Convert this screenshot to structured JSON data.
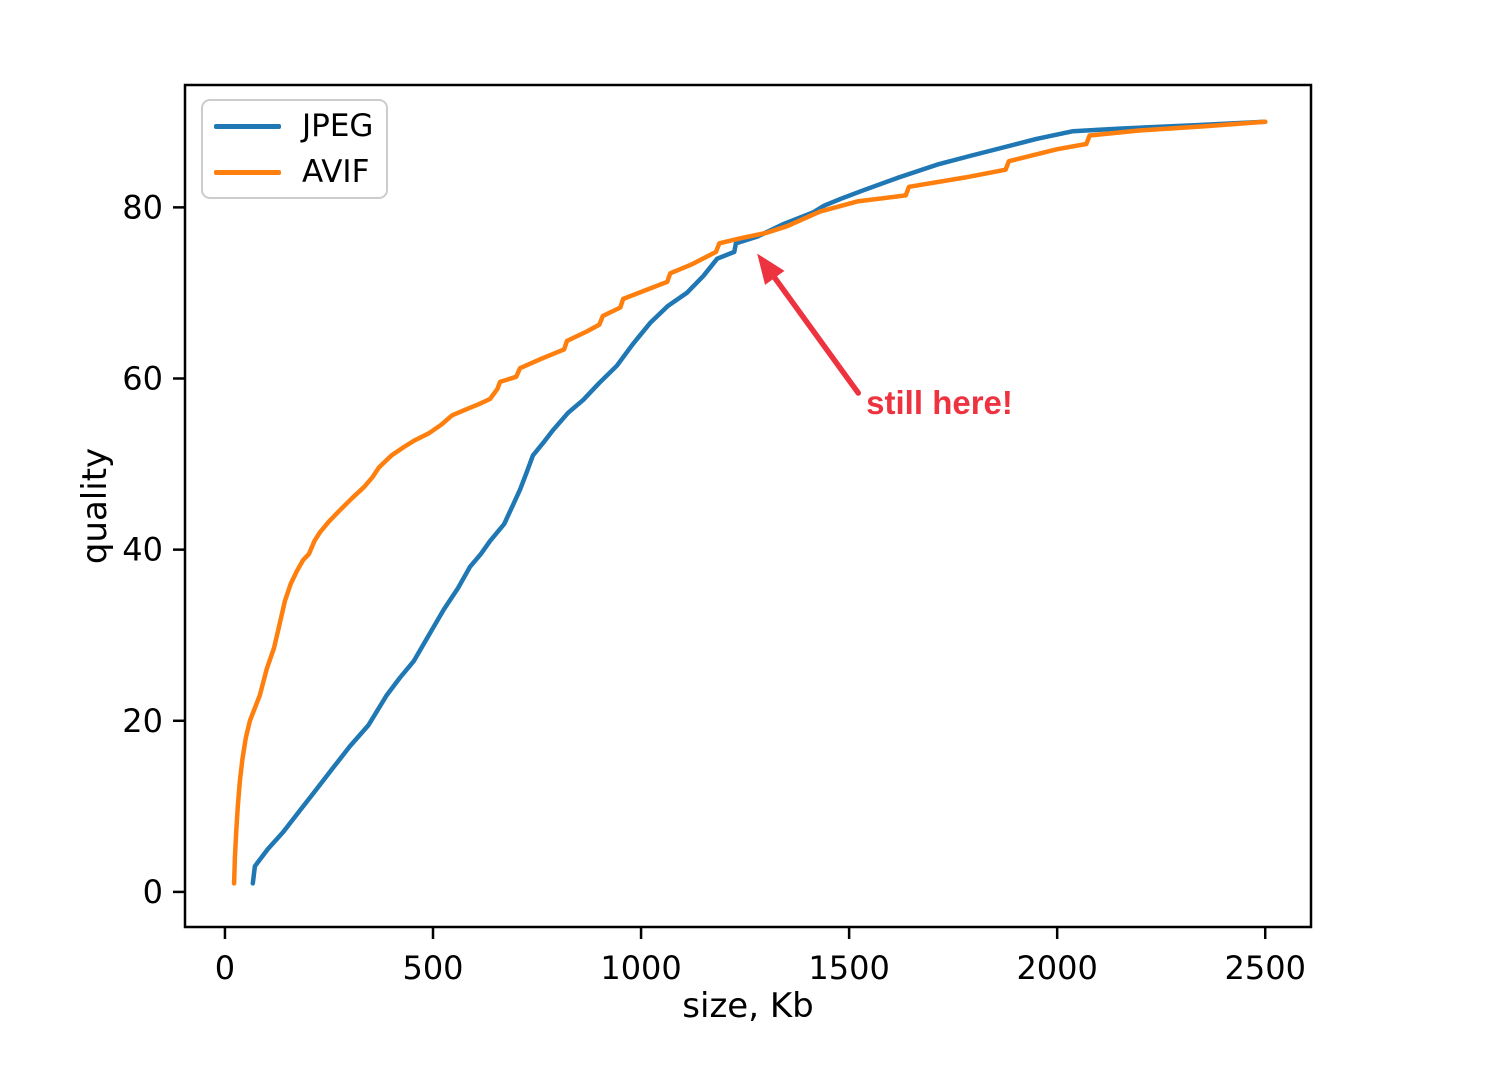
{
  "figure": {
    "background": "#ffffff"
  },
  "chart_data": {
    "type": "line",
    "title": "",
    "xlabel": "size, Kb",
    "ylabel": "quality",
    "xlim": [
      -96,
      2610
    ],
    "ylim": [
      -4.1,
      94.3
    ],
    "xticks": [
      0,
      500,
      1000,
      1500,
      2000,
      2500
    ],
    "yticks": [
      0,
      20,
      40,
      60,
      80
    ],
    "grid": false,
    "legend_position": "upper-left",
    "series": [
      {
        "name": "JPEG",
        "color": "#1f77b4",
        "points": [
          [
            67,
            1
          ],
          [
            72,
            3
          ],
          [
            103,
            5
          ],
          [
            140,
            7
          ],
          [
            180,
            9.5
          ],
          [
            220,
            12
          ],
          [
            260,
            14.5
          ],
          [
            300,
            17
          ],
          [
            345,
            19.5
          ],
          [
            389,
            23
          ],
          [
            420,
            25
          ],
          [
            454,
            27
          ],
          [
            490,
            30
          ],
          [
            526,
            33
          ],
          [
            560,
            35.5
          ],
          [
            589,
            38
          ],
          [
            615,
            39.5
          ],
          [
            637,
            41
          ],
          [
            671,
            43
          ],
          [
            690,
            45
          ],
          [
            709,
            47
          ],
          [
            725,
            49
          ],
          [
            740,
            51
          ],
          [
            765,
            52.5
          ],
          [
            789,
            54
          ],
          [
            825,
            56
          ],
          [
            861,
            57.5
          ],
          [
            900,
            59.5
          ],
          [
            942,
            61.5
          ],
          [
            980,
            64
          ],
          [
            1022,
            66.5
          ],
          [
            1065,
            68.5
          ],
          [
            1110,
            70
          ],
          [
            1150,
            72
          ],
          [
            1183,
            74
          ],
          [
            1224,
            74.8
          ],
          [
            1228,
            75.8
          ],
          [
            1280,
            76.6
          ],
          [
            1340,
            78
          ],
          [
            1413,
            79.4
          ],
          [
            1440,
            80.2
          ],
          [
            1480,
            81
          ],
          [
            1534,
            82
          ],
          [
            1620,
            83.5
          ],
          [
            1712,
            85
          ],
          [
            1790,
            86
          ],
          [
            1870,
            87
          ],
          [
            1950,
            88
          ],
          [
            2038,
            88.9
          ],
          [
            2150,
            89.2
          ],
          [
            2330,
            89.6
          ],
          [
            2500,
            90
          ]
        ]
      },
      {
        "name": "AVIF",
        "color": "#ff7f0e",
        "points": [
          [
            22,
            1
          ],
          [
            24,
            4
          ],
          [
            27,
            7
          ],
          [
            31,
            10
          ],
          [
            36,
            13
          ],
          [
            42,
            15.5
          ],
          [
            50,
            18
          ],
          [
            60,
            20
          ],
          [
            72,
            21.5
          ],
          [
            84,
            23
          ],
          [
            100,
            26
          ],
          [
            118,
            28.5
          ],
          [
            130,
            31
          ],
          [
            144,
            34
          ],
          [
            158,
            36
          ],
          [
            173,
            37.5
          ],
          [
            188,
            38.8
          ],
          [
            202,
            39.5
          ],
          [
            215,
            41
          ],
          [
            228,
            42
          ],
          [
            250,
            43.3
          ],
          [
            276,
            44.6
          ],
          [
            305,
            46
          ],
          [
            334,
            47.3
          ],
          [
            355,
            48.5
          ],
          [
            370,
            49.6
          ],
          [
            400,
            51
          ],
          [
            430,
            52
          ],
          [
            457,
            52.8
          ],
          [
            490,
            53.6
          ],
          [
            520,
            54.6
          ],
          [
            546,
            55.7
          ],
          [
            580,
            56.4
          ],
          [
            610,
            57
          ],
          [
            637,
            57.6
          ],
          [
            655,
            58.8
          ],
          [
            661,
            59.6
          ],
          [
            700,
            60.2
          ],
          [
            709,
            61.2
          ],
          [
            760,
            62.3
          ],
          [
            815,
            63.4
          ],
          [
            822,
            64.4
          ],
          [
            870,
            65.5
          ],
          [
            900,
            66.3
          ],
          [
            908,
            67.3
          ],
          [
            950,
            68.3
          ],
          [
            957,
            69.3
          ],
          [
            1010,
            70.3
          ],
          [
            1063,
            71.3
          ],
          [
            1070,
            72.3
          ],
          [
            1120,
            73.3
          ],
          [
            1180,
            74.8
          ],
          [
            1188,
            75.8
          ],
          [
            1240,
            76.4
          ],
          [
            1300,
            77
          ],
          [
            1351,
            77.8
          ],
          [
            1430,
            79.5
          ],
          [
            1520,
            80.7
          ],
          [
            1636,
            81.4
          ],
          [
            1644,
            82.4
          ],
          [
            1780,
            83.5
          ],
          [
            1876,
            84.4
          ],
          [
            1884,
            85.4
          ],
          [
            2000,
            86.8
          ],
          [
            2070,
            87.4
          ],
          [
            2078,
            88.4
          ],
          [
            2200,
            89
          ],
          [
            2360,
            89.5
          ],
          [
            2500,
            90
          ]
        ]
      }
    ],
    "legend": {
      "items": [
        "JPEG",
        "AVIF"
      ]
    },
    "annotation": {
      "text": "still here!",
      "color": "#ee3340",
      "arrow_tip": [
        1279,
        74.6
      ],
      "arrow_tail": [
        1522,
        58.3
      ],
      "text_pos": [
        1541,
        59.1
      ]
    }
  }
}
